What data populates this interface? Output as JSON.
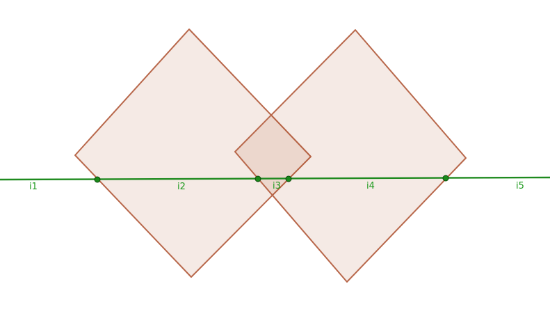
{
  "diagram": {
    "shapes": [
      {
        "name": "left-square",
        "type": "square"
      },
      {
        "name": "right-square",
        "type": "square"
      }
    ],
    "line": {
      "name": "intersecting-line",
      "points": 4
    },
    "segment_labels": [
      "i1",
      "i2",
      "i3",
      "i4",
      "i5"
    ],
    "colors": {
      "square_fill": "#f3e6e2",
      "square_stroke": "#b8674a",
      "overlap_fill": "#ead6cd",
      "line": "#1e8a1e",
      "label": "#1e9a1e"
    }
  }
}
